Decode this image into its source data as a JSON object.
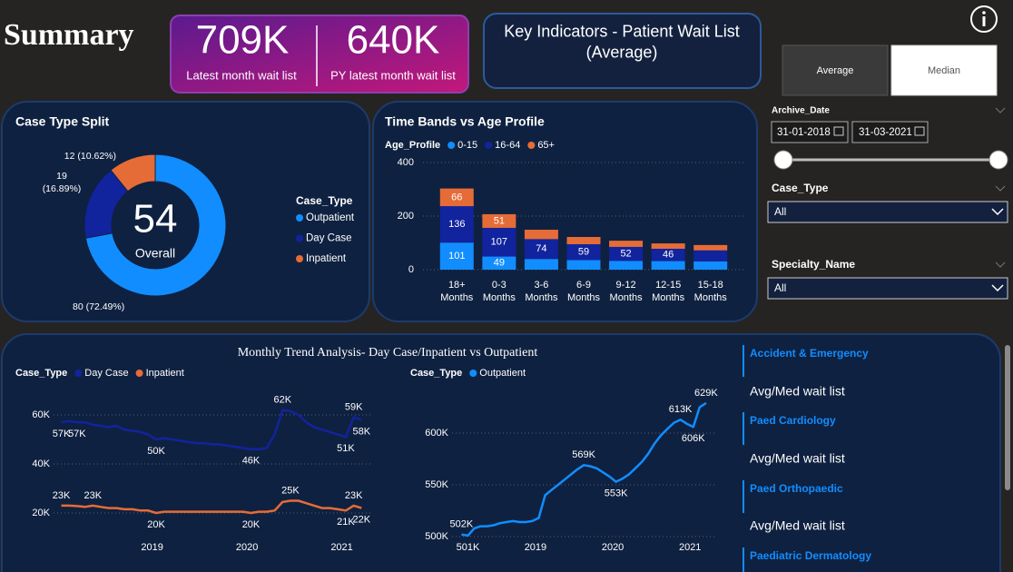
{
  "header": {
    "title": "Summary"
  },
  "kpis": [
    {
      "value": "709K",
      "label": "Latest month wait list"
    },
    {
      "value": "640K",
      "label": "PY latest month wait list"
    }
  ],
  "key_indicators": "Key Indicators - Patient Wait List (Average)",
  "toggle": [
    "Average",
    "Median"
  ],
  "filters": {
    "archive_date": {
      "label": "Archive_Date",
      "start": "31-01-2018",
      "end": "31-03-2021"
    },
    "case_type": {
      "label": "Case_Type",
      "value": "All"
    },
    "specialty_name": {
      "label": "Specialty_Name",
      "value": "All"
    }
  },
  "side_list": {
    "items": [
      "Accident & Emergency",
      "Paed Cardiology",
      "Paed Orthopaedic",
      "Paediatric Dermatology"
    ],
    "metric_label": "Avg/Med wait list"
  },
  "chart_data": [
    {
      "type": "pie",
      "title": "Case Type Split",
      "legend_title": "Case_Type",
      "categories": [
        "Outpatient",
        "Day Case",
        "Inpatient"
      ],
      "values": [
        80,
        19,
        12
      ],
      "value_labels": [
        "80 (72.49%)",
        "19 (16.89%)",
        "12 (10.62%)"
      ],
      "colors": [
        "#118dff",
        "#12239e",
        "#e66c37"
      ],
      "center_value": 54,
      "center_label": "Overall"
    },
    {
      "type": "bar",
      "stacked": true,
      "title": "Time Bands vs Age Profile",
      "legend_title": "Age_Profile",
      "categories": [
        "18+ Months",
        "0-3 Months",
        "3-6 Months",
        "6-9 Months",
        "9-12 Months",
        "12-15 Months",
        "15-18 Months"
      ],
      "series": [
        {
          "name": "0-15",
          "color": "#118dff",
          "values": [
            101,
            49,
            40,
            36,
            33,
            32,
            31
          ],
          "value_labels": [
            "101",
            "49",
            null,
            null,
            null,
            null,
            null
          ]
        },
        {
          "name": "16-64",
          "color": "#12239e",
          "values": [
            136,
            107,
            74,
            59,
            52,
            46,
            41
          ],
          "value_labels": [
            "136",
            "107",
            "74",
            "59",
            "52",
            "46",
            null
          ]
        },
        {
          "name": "65+",
          "color": "#e66c37",
          "values": [
            66,
            51,
            35,
            27,
            23,
            20,
            20
          ],
          "value_labels": [
            "66",
            "51",
            null,
            null,
            null,
            null,
            null
          ]
        }
      ],
      "ylim": [
        0,
        400
      ],
      "yticks": [
        0,
        200,
        400
      ],
      "grid": true
    },
    {
      "type": "line",
      "title": "Monthly Trend Analysis- Day Case/Inpatient vs Outpatient",
      "legend_title": "Case_Type",
      "x": [
        2018.042,
        2018.125,
        2018.208,
        2018.292,
        2018.375,
        2018.458,
        2018.542,
        2018.625,
        2018.708,
        2018.792,
        2018.875,
        2018.958,
        2019.042,
        2019.125,
        2019.208,
        2019.292,
        2019.375,
        2019.458,
        2019.542,
        2019.625,
        2019.708,
        2019.792,
        2019.875,
        2019.958,
        2020.042,
        2020.125,
        2020.208,
        2020.292,
        2020.375,
        2020.458,
        2020.542,
        2020.625,
        2020.708,
        2020.792,
        2020.875,
        2020.958,
        2021.042,
        2021.125,
        2021.208
      ],
      "series": [
        {
          "name": "Day Case",
          "color": "#12239e",
          "values": [
            57000,
            57500,
            57000,
            57000,
            56000,
            55500,
            55000,
            55500,
            54000,
            53500,
            53000,
            52000,
            50000,
            50500,
            50000,
            49500,
            49000,
            48500,
            48500,
            48000,
            48000,
            47500,
            47000,
            46500,
            46000,
            46000,
            46500,
            52000,
            62000,
            61500,
            60000,
            57000,
            55000,
            54000,
            53000,
            52000,
            51000,
            59000,
            58000
          ],
          "value_labels": [
            "57K",
            null,
            "57K",
            null,
            null,
            null,
            null,
            null,
            null,
            null,
            null,
            null,
            "50K",
            null,
            null,
            null,
            null,
            null,
            null,
            null,
            null,
            null,
            null,
            null,
            "46K",
            null,
            null,
            null,
            "62K",
            null,
            null,
            null,
            null,
            null,
            null,
            null,
            "51K",
            "59K",
            "58K"
          ]
        },
        {
          "name": "Inpatient",
          "color": "#e66c37",
          "values": [
            23000,
            23000,
            22800,
            22500,
            23000,
            22500,
            22000,
            22000,
            21500,
            21500,
            21000,
            21000,
            20000,
            20500,
            20500,
            20500,
            20500,
            20500,
            20500,
            20500,
            20500,
            20500,
            20500,
            20500,
            20000,
            20500,
            20500,
            21000,
            24500,
            25000,
            25000,
            24000,
            23000,
            22000,
            22000,
            21500,
            21000,
            23000,
            22000
          ],
          "value_labels": [
            "23K",
            null,
            null,
            null,
            "23K",
            null,
            null,
            null,
            null,
            null,
            null,
            null,
            "20K",
            null,
            null,
            null,
            null,
            null,
            null,
            null,
            null,
            null,
            null,
            null,
            "20K",
            null,
            null,
            null,
            null,
            "25K",
            null,
            null,
            null,
            null,
            null,
            null,
            "21K",
            "23K",
            "22K"
          ]
        }
      ],
      "xlim": [
        2017.97,
        2021.32
      ],
      "xticks": [
        2019,
        2020,
        2021
      ],
      "ylim": [
        8000,
        70000
      ],
      "yticks": [
        {
          "value": 20000,
          "label": "20K"
        },
        {
          "value": 40000,
          "label": "40K"
        },
        {
          "value": 60000,
          "label": "60K"
        }
      ],
      "grid": true
    },
    {
      "type": "line",
      "legend_title": "Case_Type",
      "x": [
        2018.042,
        2018.125,
        2018.208,
        2018.292,
        2018.375,
        2018.458,
        2018.542,
        2018.625,
        2018.708,
        2018.792,
        2018.875,
        2018.958,
        2019.042,
        2019.125,
        2019.208,
        2019.292,
        2019.375,
        2019.458,
        2019.542,
        2019.625,
        2019.708,
        2019.792,
        2019.875,
        2019.958,
        2020.042,
        2020.125,
        2020.208,
        2020.292,
        2020.375,
        2020.458,
        2020.542,
        2020.625,
        2020.708,
        2020.792,
        2020.875,
        2020.958,
        2021.042,
        2021.125,
        2021.208
      ],
      "series": [
        {
          "name": "Outpatient",
          "color": "#118dff",
          "values": [
            502000,
            501000,
            508000,
            510000,
            510000,
            511000,
            513000,
            514000,
            515000,
            514000,
            514000,
            515000,
            518000,
            540000,
            545000,
            550000,
            555000,
            560000,
            565000,
            569000,
            568000,
            566000,
            562000,
            558000,
            553000,
            556000,
            560000,
            566000,
            572000,
            580000,
            590000,
            598000,
            604000,
            610000,
            613000,
            609000,
            606000,
            625000,
            629000
          ],
          "value_labels": [
            "502K",
            "501K",
            null,
            null,
            null,
            null,
            null,
            null,
            null,
            null,
            null,
            null,
            null,
            null,
            null,
            null,
            null,
            null,
            null,
            "569K",
            null,
            null,
            null,
            null,
            "553K",
            null,
            null,
            null,
            null,
            null,
            null,
            null,
            null,
            null,
            "613K",
            null,
            "606K",
            null,
            "629K"
          ]
        }
      ],
      "xlim": [
        2017.92,
        2021.35
      ],
      "xticks": [
        2019,
        2020,
        2021
      ],
      "ylim": [
        495000,
        640000
      ],
      "yticks": [
        {
          "value": 500000,
          "label": "500K"
        },
        {
          "value": 550000,
          "label": "550K"
        },
        {
          "value": 600000,
          "label": "600K"
        }
      ],
      "grid": true
    }
  ]
}
